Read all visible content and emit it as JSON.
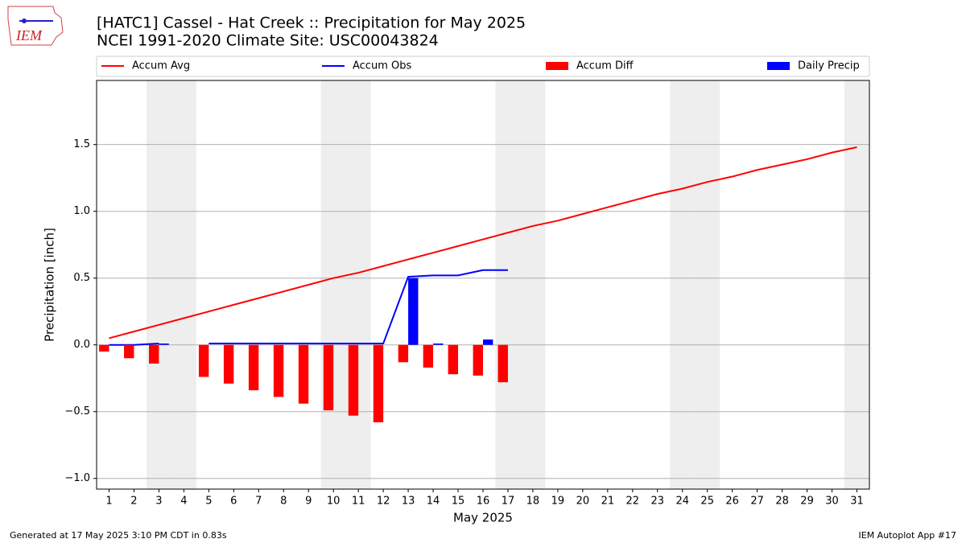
{
  "logo": "IEM",
  "footer_left": "Generated at 17 May 2025 3:10 PM CDT in 0.83s",
  "footer_right": "IEM Autoplot App #17",
  "chart_data": {
    "type": "bar",
    "title": "[HATC1] Cassel - Hat Creek :: Precipitation for May 2025",
    "subtitle": "NCEI 1991-2020 Climate Site: USC00043824",
    "x_label": "May 2025",
    "y_label": "Precipitation [inch]",
    "categories": [
      "1",
      "2",
      "3",
      "4",
      "5",
      "6",
      "7",
      "8",
      "9",
      "10",
      "11",
      "12",
      "13",
      "14",
      "15",
      "16",
      "17",
      "18",
      "19",
      "20",
      "21",
      "22",
      "23",
      "24",
      "25",
      "26",
      "27",
      "28",
      "29",
      "30",
      "31"
    ],
    "highlight_categories": [
      "3",
      "4",
      "10",
      "11",
      "17",
      "18",
      "24",
      "25",
      "31"
    ],
    "series": [
      {
        "name": "Accum Avg",
        "type": "line",
        "color": "#ff0000",
        "values": [
          0.05,
          0.1,
          0.15,
          0.2,
          0.25,
          0.3,
          0.35,
          0.4,
          0.45,
          0.5,
          0.54,
          0.59,
          0.64,
          0.69,
          0.74,
          0.79,
          0.84,
          0.89,
          0.93,
          0.98,
          1.03,
          1.08,
          1.13,
          1.17,
          1.22,
          1.26,
          1.31,
          1.35,
          1.39,
          1.44,
          1.48
        ]
      },
      {
        "name": "Accum Obs",
        "type": "line",
        "color": "#0000ff",
        "values": [
          0,
          0,
          0.01,
          null,
          0.01,
          0.01,
          0.01,
          0.01,
          0.01,
          0.01,
          0.01,
          0.01,
          0.51,
          0.52,
          0.52,
          0.56,
          0.56,
          null,
          null,
          null,
          null,
          null,
          null,
          null,
          null,
          null,
          null,
          null,
          null,
          null,
          null
        ]
      },
      {
        "name": "Accum Diff",
        "type": "bar",
        "color": "#ff0000",
        "values": [
          -0.05,
          -0.1,
          -0.14,
          null,
          -0.24,
          -0.29,
          -0.34,
          -0.39,
          -0.44,
          -0.49,
          -0.53,
          -0.58,
          -0.13,
          -0.17,
          -0.22,
          -0.23,
          -0.28,
          null,
          null,
          null,
          null,
          null,
          null,
          null,
          null,
          null,
          null,
          null,
          null,
          null,
          null
        ]
      },
      {
        "name": "Daily Precip",
        "type": "bar",
        "color": "#0000ff",
        "values": [
          0,
          0,
          0.01,
          null,
          0,
          0,
          0,
          0,
          0,
          0,
          0,
          0,
          0.5,
          0.01,
          0,
          0.04,
          0,
          null,
          null,
          null,
          null,
          null,
          null,
          null,
          null,
          null,
          null,
          null,
          null,
          null,
          null
        ]
      }
    ],
    "ylim": [
      -1.08,
      1.98
    ],
    "yticks": [
      {
        "value": -1.0,
        "label": "−1.0"
      },
      {
        "value": -0.5,
        "label": "−0.5"
      },
      {
        "value": 0,
        "label": "0.0"
      },
      0.5,
      {
        "value": 1,
        "label": "1.0"
      },
      1.5
    ],
    "grid": true,
    "legend": "top"
  }
}
